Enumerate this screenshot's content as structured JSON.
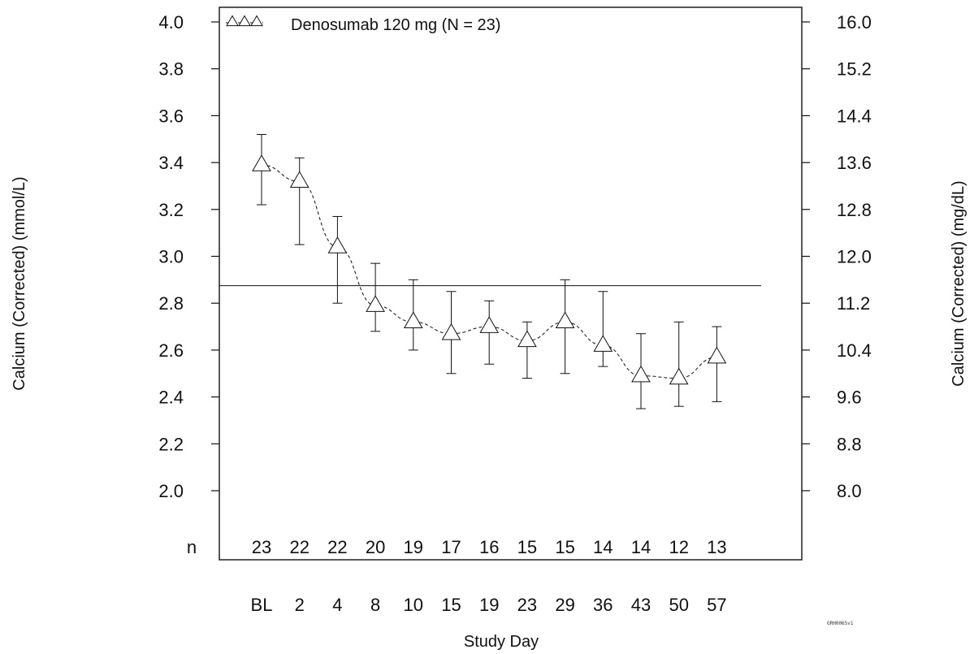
{
  "chart_data": {
    "type": "line",
    "xlabel": "Study Day",
    "ylabel_left": "Calcium (Corrected) (mmol/L)",
    "ylabel_right": "Calcium (Corrected)  (mg/dL)",
    "categories": [
      "BL",
      "2",
      "4",
      "8",
      "10",
      "15",
      "19",
      "23",
      "29",
      "36",
      "43",
      "50",
      "57"
    ],
    "series": [
      {
        "name": "Denosumab 120 mg (N = 23)",
        "marker": "triangle",
        "line_style": "dashed",
        "values": [
          3.39,
          3.32,
          3.04,
          2.79,
          2.72,
          2.67,
          2.7,
          2.64,
          2.72,
          2.62,
          2.49,
          2.48,
          2.57
        ],
        "error_lower": [
          3.22,
          3.05,
          2.8,
          2.68,
          2.6,
          2.5,
          2.54,
          2.48,
          2.5,
          2.53,
          2.35,
          2.36,
          2.38
        ],
        "error_upper": [
          3.52,
          3.42,
          3.17,
          2.97,
          2.9,
          2.85,
          2.81,
          2.72,
          2.9,
          2.85,
          2.67,
          2.72,
          2.7
        ]
      }
    ],
    "reference_line": 2.875,
    "n_label": "n",
    "n_values": [
      "23",
      "22",
      "22",
      "20",
      "19",
      "17",
      "16",
      "15",
      "15",
      "14",
      "14",
      "12",
      "13"
    ],
    "left_ticks": [
      "2.0",
      "2.2",
      "2.4",
      "2.6",
      "2.8",
      "3.0",
      "3.2",
      "3.4",
      "3.6",
      "3.8",
      "4.0"
    ],
    "right_ticks": [
      "8.0",
      "8.8",
      "9.6",
      "10.4",
      "11.2",
      "12.0",
      "12.8",
      "13.6",
      "14.4",
      "15.2",
      "16.0"
    ],
    "ylim": [
      2.0,
      4.0
    ],
    "grid": false,
    "legend_position": "top-left",
    "colors": {
      "line": "#111111",
      "background": "#ffffff"
    }
  },
  "footnote": "GRH0065v1"
}
